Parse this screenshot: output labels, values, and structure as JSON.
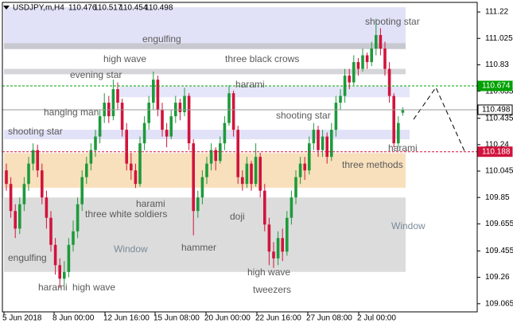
{
  "chart_data": {
    "type": "candlestick",
    "symbol": "USDJPY,m,H4",
    "up_color": "#1e9a3c",
    "down_color": "#d0143c",
    "ylim": [
      109.005,
      111.291
    ],
    "yticks": [
      111.22,
      111.025,
      110.83,
      110.635,
      110.435,
      110.24,
      110.045,
      109.85,
      109.655,
      109.455,
      109.26,
      109.065
    ],
    "xlabels": [
      "5 Jun 2018",
      "8 Jun 00:00",
      "12 Jun 16:00",
      "15 Jun 08:00",
      "20 Jun 00:00",
      "22 Jun 16:00",
      "27 Jun 08:00",
      "2 Jul 00:00"
    ],
    "levels": [
      {
        "value": 110.674,
        "color": "#00a000"
      },
      {
        "value": 110.498,
        "color": "#9a9a9a"
      },
      {
        "value": 110.188,
        "color": "#d0143c"
      }
    ],
    "zones": [
      {
        "from": 111.255,
        "to": 110.99,
        "color": "#e1e1f7"
      },
      {
        "from": 110.99,
        "to": 110.946,
        "color": "#c8c8d0"
      },
      {
        "from": 110.8,
        "to": 110.76,
        "color": "#d6d6da"
      },
      {
        "from": 110.67,
        "to": 110.59,
        "color": "#e6e6fa"
      },
      {
        "from": 110.35,
        "to": 110.28,
        "color": "#e1e1f7"
      },
      {
        "from": 110.178,
        "to": 109.922,
        "color": "#f8e0bc"
      },
      {
        "from": 109.85,
        "to": 109.3,
        "color": "#dcdcdc"
      }
    ],
    "annotations": [
      "engulfing",
      "high wave",
      "three black crows",
      "evening star",
      "harami",
      "hanging man",
      "shooting star",
      "shooting star",
      "shooting star",
      "harami",
      "three methods",
      "harami",
      "three white soldiers",
      "doji",
      "hammer",
      "Window",
      "Window",
      "engulfing",
      "harami",
      "high wave",
      "high wave",
      "tweezers"
    ],
    "candles": [
      [
        110.05,
        110.1,
        109.9,
        109.95
      ],
      [
        109.95,
        110,
        109.7,
        109.75
      ],
      [
        109.75,
        109.8,
        109.55,
        109.62
      ],
      [
        109.62,
        109.85,
        109.58,
        109.8
      ],
      [
        109.8,
        110,
        109.75,
        109.95
      ],
      [
        109.95,
        110.15,
        109.9,
        110.1
      ],
      [
        110.1,
        110.25,
        110.05,
        110.2
      ],
      [
        110.2,
        110.24,
        110,
        110.05
      ],
      [
        110.05,
        110.1,
        109.8,
        109.85
      ],
      [
        109.85,
        109.9,
        109.62,
        109.7
      ],
      [
        109.7,
        109.75,
        109.45,
        109.5
      ],
      [
        109.5,
        109.55,
        109.28,
        109.35
      ],
      [
        109.35,
        109.4,
        109.18,
        109.25
      ],
      [
        109.25,
        109.38,
        109.2,
        109.3
      ],
      [
        109.3,
        109.55,
        109.26,
        109.5
      ],
      [
        109.5,
        109.68,
        109.45,
        109.6
      ],
      [
        109.6,
        109.85,
        109.55,
        109.8
      ],
      [
        109.8,
        110.05,
        109.75,
        110
      ],
      [
        110,
        110.15,
        109.95,
        110.1
      ],
      [
        110.1,
        110.25,
        110.05,
        110.2
      ],
      [
        110.2,
        110.35,
        110.15,
        110.3
      ],
      [
        110.3,
        110.5,
        110.25,
        110.45
      ],
      [
        110.45,
        110.62,
        110.4,
        110.55
      ],
      [
        110.55,
        110.6,
        110.4,
        110.45
      ],
      [
        110.45,
        110.72,
        110.42,
        110.65
      ],
      [
        110.65,
        110.7,
        110.5,
        110.55
      ],
      [
        110.55,
        110.58,
        110.3,
        110.35
      ],
      [
        110.35,
        110.4,
        110.05,
        110.1
      ],
      [
        110.1,
        110.18,
        109.98,
        110.05
      ],
      [
        110.05,
        110.1,
        109.92,
        109.95
      ],
      [
        109.95,
        110.3,
        109.93,
        110.25
      ],
      [
        110.25,
        110.45,
        110.2,
        110.4
      ],
      [
        110.4,
        110.6,
        110.35,
        110.55
      ],
      [
        110.55,
        110.78,
        110.5,
        110.72
      ],
      [
        110.72,
        110.75,
        110.45,
        110.5
      ],
      [
        110.5,
        110.55,
        110.3,
        110.35
      ],
      [
        110.35,
        110.4,
        110.22,
        110.3
      ],
      [
        110.3,
        110.5,
        110.28,
        110.45
      ],
      [
        110.45,
        110.6,
        110.4,
        110.55
      ],
      [
        110.55,
        110.58,
        110.42,
        110.48
      ],
      [
        110.48,
        110.66,
        110.45,
        110.6
      ],
      [
        110.6,
        110.62,
        110.2,
        110.25
      ],
      [
        110.25,
        110.28,
        109.57,
        109.75
      ],
      [
        109.75,
        109.9,
        109.7,
        109.85
      ],
      [
        109.85,
        110.05,
        109.8,
        110
      ],
      [
        110,
        110.15,
        109.95,
        110.1
      ],
      [
        110.1,
        110.25,
        110.05,
        110.2
      ],
      [
        110.2,
        110.22,
        110.05,
        110.12
      ],
      [
        110.12,
        110.3,
        110.1,
        110.25
      ],
      [
        110.25,
        110.45,
        110.2,
        110.4
      ],
      [
        110.4,
        110.68,
        110.38,
        110.62
      ],
      [
        110.62,
        110.64,
        110.3,
        110.35
      ],
      [
        110.35,
        110.38,
        109.95,
        110
      ],
      [
        110,
        110.05,
        109.9,
        109.95
      ],
      [
        109.95,
        110.15,
        109.92,
        110.1
      ],
      [
        110.1,
        110.12,
        109.9,
        109.95
      ],
      [
        109.95,
        110.25,
        109.93,
        110.15
      ],
      [
        110.15,
        110.18,
        109.85,
        109.9
      ],
      [
        109.9,
        109.95,
        109.6,
        109.65
      ],
      [
        109.65,
        109.7,
        109.35,
        109.45
      ],
      [
        109.45,
        109.52,
        109.33,
        109.4
      ],
      [
        109.4,
        109.6,
        109.35,
        109.55
      ],
      [
        109.55,
        109.62,
        109.38,
        109.45
      ],
      [
        109.45,
        109.75,
        109.42,
        109.7
      ],
      [
        109.7,
        109.9,
        109.65,
        109.85
      ],
      [
        109.85,
        110.05,
        109.8,
        110
      ],
      [
        110,
        110.15,
        109.95,
        110.1
      ],
      [
        110.1,
        110.15,
        109.98,
        110.05
      ],
      [
        110.05,
        110.3,
        110.02,
        110.25
      ],
      [
        110.25,
        110.4,
        110.2,
        110.35
      ],
      [
        110.35,
        110.38,
        110.15,
        110.2
      ],
      [
        110.2,
        110.35,
        110.15,
        110.3
      ],
      [
        110.3,
        110.33,
        110.1,
        110.15
      ],
      [
        110.15,
        110.4,
        110.12,
        110.35
      ],
      [
        110.35,
        110.6,
        110.3,
        110.55
      ],
      [
        110.55,
        110.65,
        110.5,
        110.6
      ],
      [
        110.6,
        110.8,
        110.55,
        110.75
      ],
      [
        110.75,
        110.8,
        110.65,
        110.7
      ],
      [
        110.7,
        110.9,
        110.68,
        110.85
      ],
      [
        110.85,
        110.88,
        110.75,
        110.8
      ],
      [
        110.8,
        110.95,
        110.78,
        110.9
      ],
      [
        110.9,
        110.92,
        110.8,
        110.85
      ],
      [
        110.85,
        111,
        110.82,
        110.95
      ],
      [
        110.95,
        111.17,
        110.9,
        111.05
      ],
      [
        111.05,
        111.1,
        110.9,
        110.95
      ],
      [
        110.95,
        111,
        110.75,
        110.8
      ],
      [
        110.8,
        110.85,
        110.55,
        110.6
      ],
      [
        110.6,
        110.62,
        110.22,
        110.25
      ],
      [
        110.25,
        110.45,
        110.22,
        110.4
      ],
      [
        110.476,
        110.517,
        110.454,
        110.498
      ]
    ]
  }
}
